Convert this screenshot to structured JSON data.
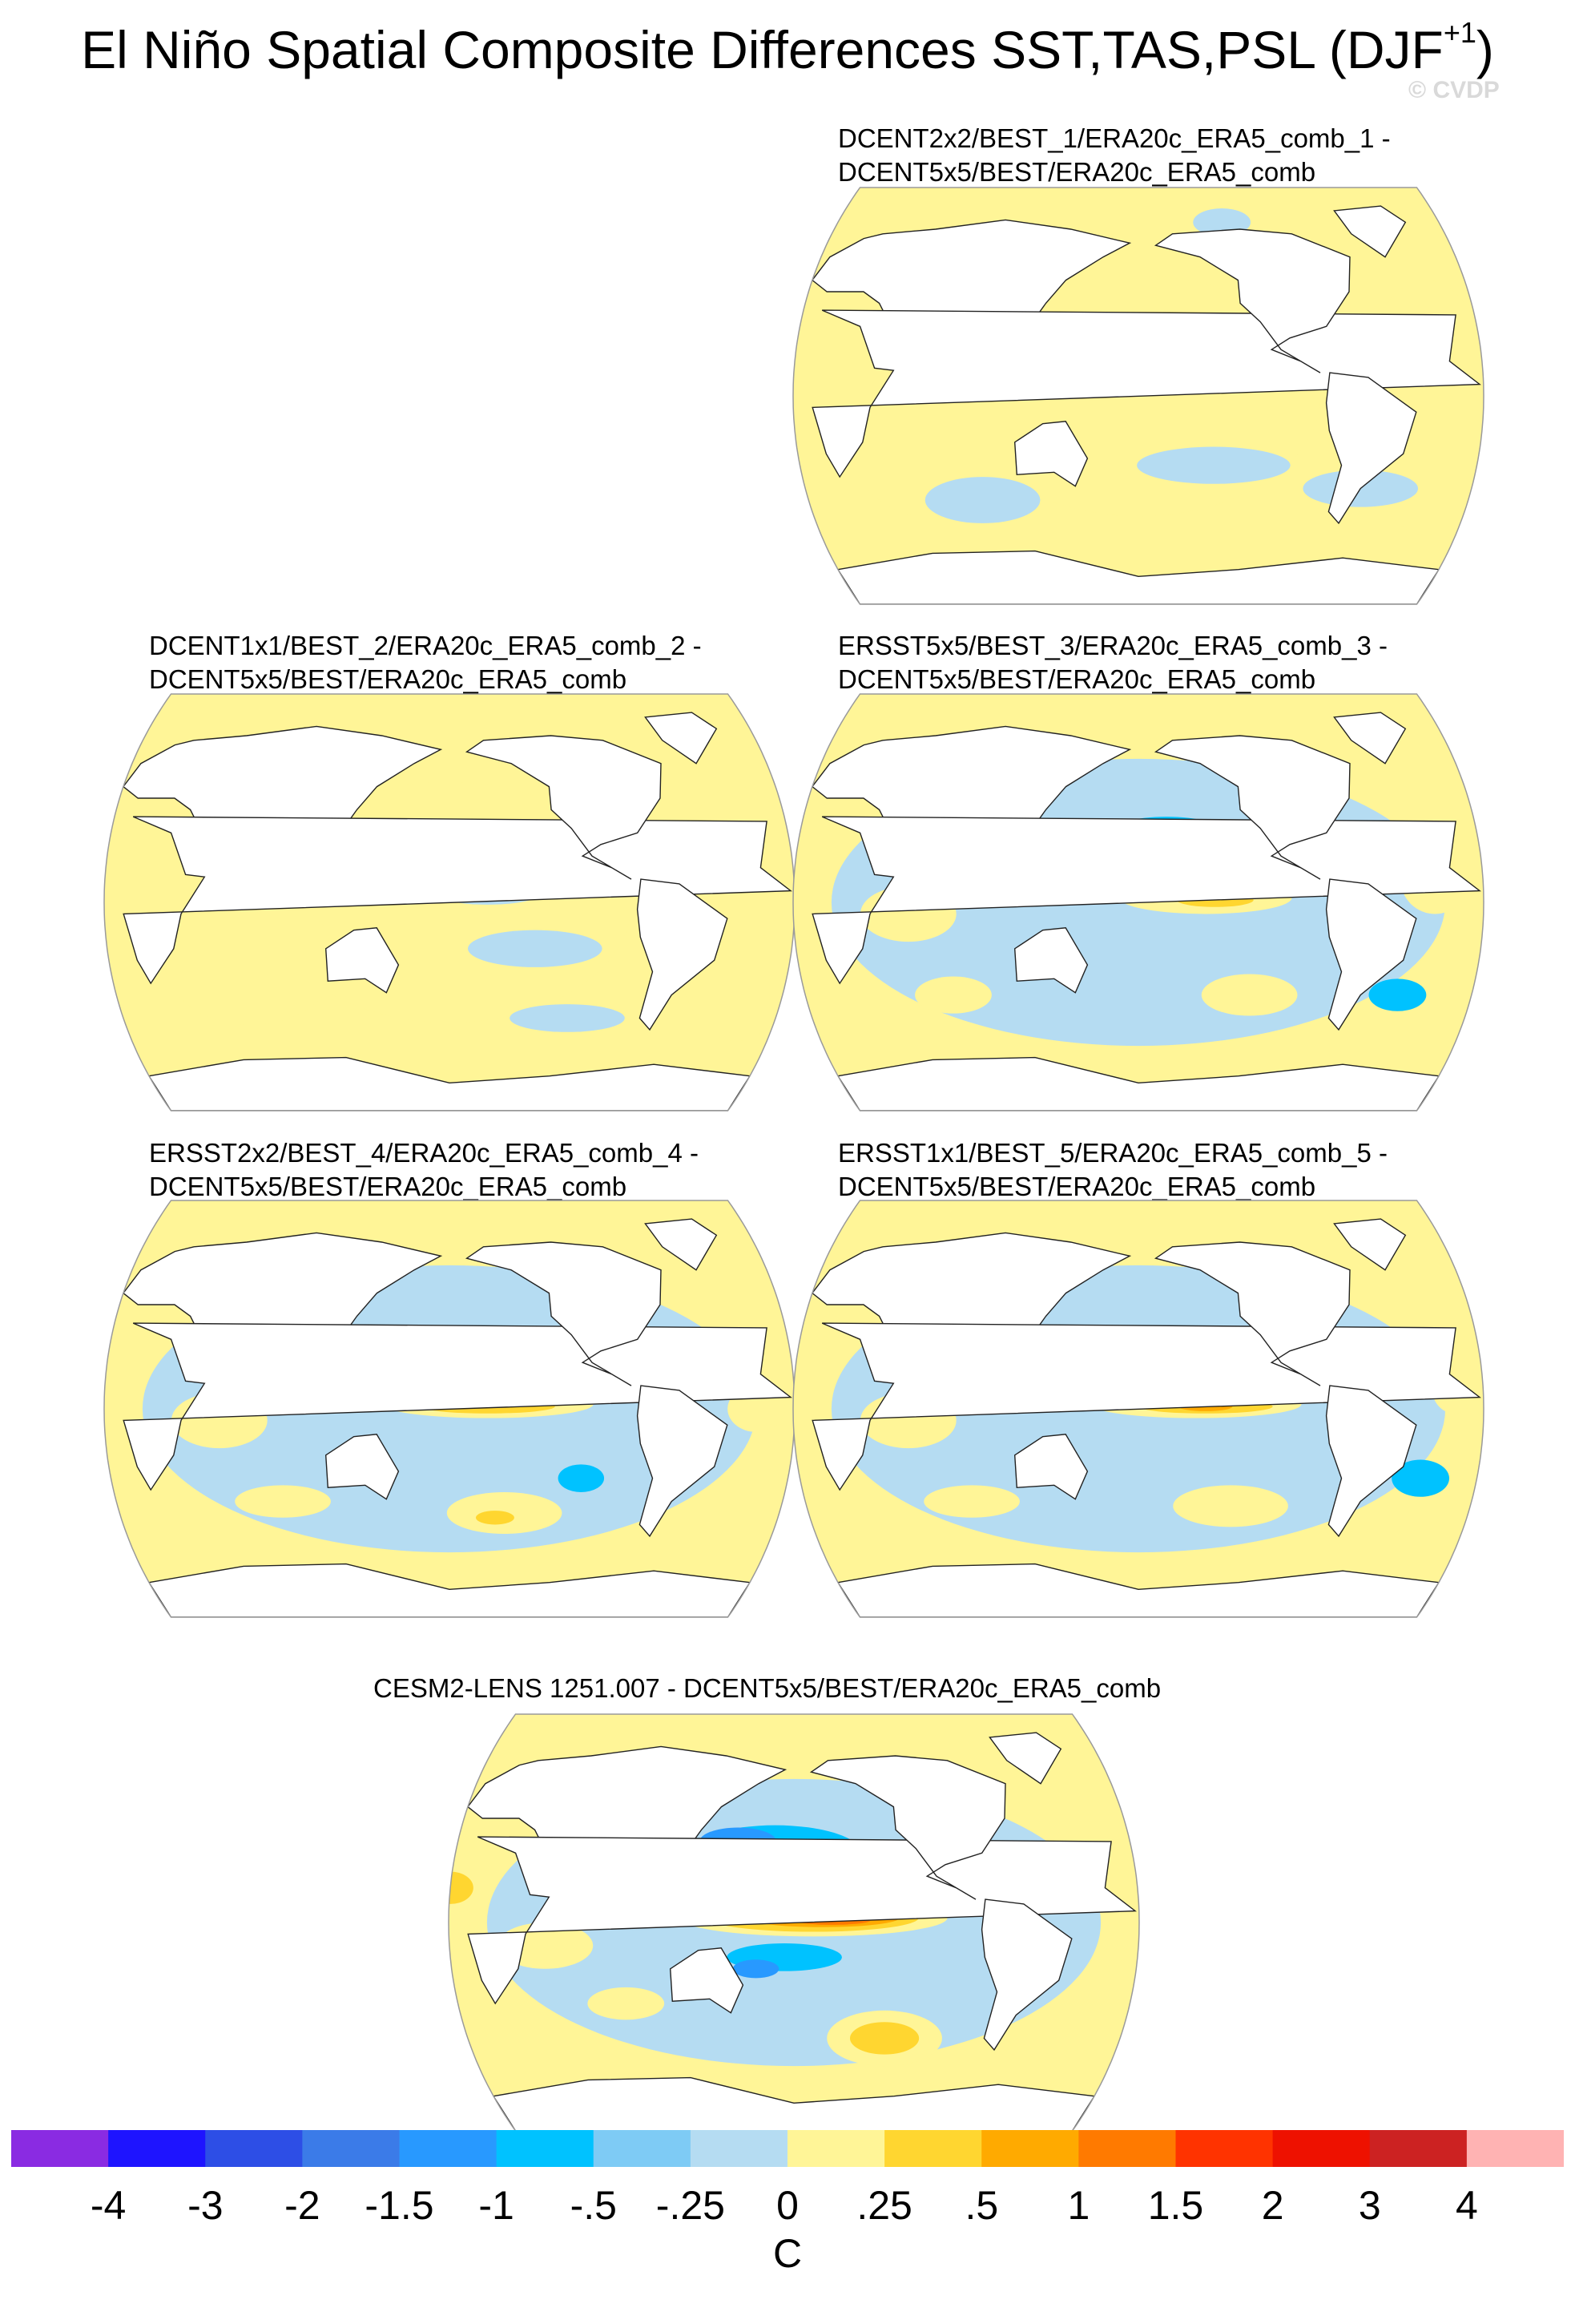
{
  "figure": {
    "title_main": "El Niño Spatial Composite Differences SST,TAS,PSL (DJF",
    "title_sup": "+1",
    "title_close": ")",
    "watermark": "© CVDP"
  },
  "colors": {
    "background": "#ffffff",
    "land": "#ffffff",
    "coast": "#222222",
    "outline": "#9a9a9a"
  },
  "chart_data": {
    "type": "heatmap",
    "projection": "Robinson (global, centered 180°)",
    "variable": "composite difference",
    "units": "C",
    "colorbar": {
      "labels": [
        "-4",
        "-3",
        "-2",
        "-1.5",
        "-1",
        "-.5",
        "-.25",
        "0",
        ".25",
        ".5",
        "1",
        "1.5",
        "2",
        "3",
        "4"
      ],
      "colors": [
        "#8a2be2",
        "#1e14ff",
        "#2d4ee6",
        "#3b7be8",
        "#2899ff",
        "#00c2ff",
        "#7ecbf5",
        "#b5dcf2",
        "#fff597",
        "#ffd630",
        "#ffaa00",
        "#ff7a00",
        "#ff3300",
        "#ee1100",
        "#cc2222",
        "#ffb3b3"
      ]
    },
    "panels": [
      {
        "id": "dcent2x2",
        "title_line1": "DCENT2x2/BEST_1/ERA20c_ERA5_comb_1 -",
        "title_line2": "DCENT5x5/BEST/ERA20c_ERA5_comb",
        "regions": [
          {
            "lon": 180,
            "lat": 0,
            "rx": 95,
            "ry": 52,
            "level": 0.1
          },
          {
            "lon": 330,
            "lat": -5,
            "rx": 35,
            "ry": 55,
            "level": 0.1
          },
          {
            "lon": 75,
            "lat": -25,
            "rx": 45,
            "ry": 28,
            "level": 0.1
          },
          {
            "lon": 95,
            "lat": -45,
            "rx": 30,
            "ry": 10,
            "level": -0.2
          },
          {
            "lon": 205,
            "lat": 15,
            "rx": 35,
            "ry": 6,
            "level": -0.2
          },
          {
            "lon": 220,
            "lat": -30,
            "rx": 40,
            "ry": 8,
            "level": -0.2
          },
          {
            "lon": 300,
            "lat": -40,
            "rx": 30,
            "ry": 8,
            "level": -0.2
          },
          {
            "lon": 230,
            "lat": 75,
            "rx": 15,
            "ry": 6,
            "level": -0.2
          }
        ]
      },
      {
        "id": "dcent1x1",
        "title_line1": "DCENT1x1/BEST_2/ERA20c_ERA5_comb_2 -",
        "title_line2": "DCENT5x5/BEST/ERA20c_ERA5_comb",
        "regions": [
          {
            "lon": 180,
            "lat": 0,
            "rx": 95,
            "ry": 52,
            "level": 0.1
          },
          {
            "lon": 330,
            "lat": -5,
            "rx": 35,
            "ry": 55,
            "level": 0.1
          },
          {
            "lon": 75,
            "lat": -25,
            "rx": 45,
            "ry": 28,
            "level": 0.1
          },
          {
            "lon": 200,
            "lat": 5,
            "rx": 30,
            "ry": 6,
            "level": -0.2
          },
          {
            "lon": 225,
            "lat": -20,
            "rx": 35,
            "ry": 8,
            "level": -0.2
          },
          {
            "lon": 245,
            "lat": -50,
            "rx": 30,
            "ry": 6,
            "level": -0.2
          }
        ]
      },
      {
        "id": "ersst5x5",
        "title_line1": "ERSST5x5/BEST_3/ERA20c_ERA5_comb_3 -",
        "title_line2": "DCENT5x5/BEST/ERA20c_ERA5_comb",
        "regions": [
          {
            "lon": 180,
            "lat": 0,
            "rx": 160,
            "ry": 62,
            "level": -0.2
          },
          {
            "lon": 215,
            "lat": 2,
            "rx": 45,
            "ry": 7,
            "level": 0.1
          },
          {
            "lon": 220,
            "lat": 1,
            "rx": 20,
            "ry": 3,
            "level": 0.3
          },
          {
            "lon": 240,
            "lat": -40,
            "rx": 25,
            "ry": 9,
            "level": 0.1
          },
          {
            "lon": 60,
            "lat": -5,
            "rx": 25,
            "ry": 12,
            "level": 0.1
          },
          {
            "lon": 80,
            "lat": -40,
            "rx": 20,
            "ry": 8,
            "level": 0.1
          },
          {
            "lon": 335,
            "lat": 10,
            "rx": 18,
            "ry": 15,
            "level": 0.1
          },
          {
            "lon": 195,
            "lat": 30,
            "rx": 30,
            "ry": 7,
            "level": -0.8
          },
          {
            "lon": 320,
            "lat": -40,
            "rx": 15,
            "ry": 7,
            "level": -0.8
          }
        ]
      },
      {
        "id": "ersst2x2",
        "title_line1": "ERSST2x2/BEST_4/ERA20c_ERA5_comb_4 -",
        "title_line2": "DCENT5x5/BEST/ERA20c_ERA5_comb",
        "regions": [
          {
            "lon": 180,
            "lat": 0,
            "rx": 160,
            "ry": 62,
            "level": -0.2
          },
          {
            "lon": 200,
            "lat": 2,
            "rx": 55,
            "ry": 6,
            "level": 0.1
          },
          {
            "lon": 200,
            "lat": 1,
            "rx": 35,
            "ry": 3,
            "level": 0.3
          },
          {
            "lon": 210,
            "lat": -45,
            "rx": 30,
            "ry": 9,
            "level": 0.1
          },
          {
            "lon": 205,
            "lat": -47,
            "rx": 10,
            "ry": 3,
            "level": 0.3
          },
          {
            "lon": 60,
            "lat": -5,
            "rx": 25,
            "ry": 12,
            "level": 0.1
          },
          {
            "lon": 90,
            "lat": -40,
            "rx": 25,
            "ry": 7,
            "level": 0.1
          },
          {
            "lon": 250,
            "lat": -30,
            "rx": 12,
            "ry": 6,
            "level": -0.8
          },
          {
            "lon": 340,
            "lat": 0,
            "rx": 15,
            "ry": 10,
            "level": 0.1
          }
        ]
      },
      {
        "id": "ersst1x1",
        "title_line1": "ERSST1x1/BEST_5/ERA20c_ERA5_comb_5 -",
        "title_line2": "DCENT5x5/BEST/ERA20c_ERA5_comb",
        "regions": [
          {
            "lon": 180,
            "lat": 0,
            "rx": 160,
            "ry": 62,
            "level": -0.2
          },
          {
            "lon": 210,
            "lat": 2,
            "rx": 55,
            "ry": 6,
            "level": 0.1
          },
          {
            "lon": 215,
            "lat": 1,
            "rx": 35,
            "ry": 3,
            "level": 0.3
          },
          {
            "lon": 215,
            "lat": 1,
            "rx": 14,
            "ry": 2,
            "level": 0.7
          },
          {
            "lon": 230,
            "lat": -42,
            "rx": 30,
            "ry": 9,
            "level": 0.1
          },
          {
            "lon": 60,
            "lat": -5,
            "rx": 25,
            "ry": 12,
            "level": 0.1
          },
          {
            "lon": 90,
            "lat": -40,
            "rx": 25,
            "ry": 7,
            "level": 0.1
          },
          {
            "lon": 330,
            "lat": -30,
            "rx": 15,
            "ry": 8,
            "level": -0.8
          },
          {
            "lon": 345,
            "lat": 10,
            "rx": 12,
            "ry": 12,
            "level": 0.1
          }
        ]
      },
      {
        "id": "cesm2lens",
        "title_line1": "CESM2-LENS 1251.007 - DCENT5x5/BEST/ERA20c_ERA5_comb",
        "title_line2": "",
        "regions": [
          {
            "lon": 180,
            "lat": 0,
            "rx": 160,
            "ry": 62,
            "level": -0.2
          },
          {
            "lon": 170,
            "lat": 30,
            "rx": 45,
            "ry": 12,
            "level": -0.8
          },
          {
            "lon": 150,
            "lat": 35,
            "rx": 20,
            "ry": 6,
            "level": -1.2
          },
          {
            "lon": 190,
            "lat": 2,
            "rx": 70,
            "ry": 8,
            "level": 0.1
          },
          {
            "lon": 190,
            "lat": 2,
            "rx": 55,
            "ry": 6,
            "level": 0.3
          },
          {
            "lon": 195,
            "lat": 2,
            "rx": 40,
            "ry": 4,
            "level": 0.7
          },
          {
            "lon": 200,
            "lat": 1,
            "rx": 20,
            "ry": 2,
            "level": 1.2
          },
          {
            "lon": 175,
            "lat": -15,
            "rx": 30,
            "ry": 6,
            "level": -0.8
          },
          {
            "lon": 160,
            "lat": -20,
            "rx": 12,
            "ry": 4,
            "level": -1.2
          },
          {
            "lon": 230,
            "lat": -50,
            "rx": 30,
            "ry": 12,
            "level": 0.1
          },
          {
            "lon": 230,
            "lat": -50,
            "rx": 18,
            "ry": 7,
            "level": 0.3
          },
          {
            "lon": 50,
            "lat": -10,
            "rx": 25,
            "ry": 10,
            "level": 0.1
          },
          {
            "lon": 90,
            "lat": -35,
            "rx": 20,
            "ry": 7,
            "level": 0.1
          },
          {
            "lon": 0,
            "lat": 15,
            "rx": 12,
            "ry": 7,
            "level": 0.3
          }
        ]
      }
    ]
  },
  "colorbar_title": "C"
}
